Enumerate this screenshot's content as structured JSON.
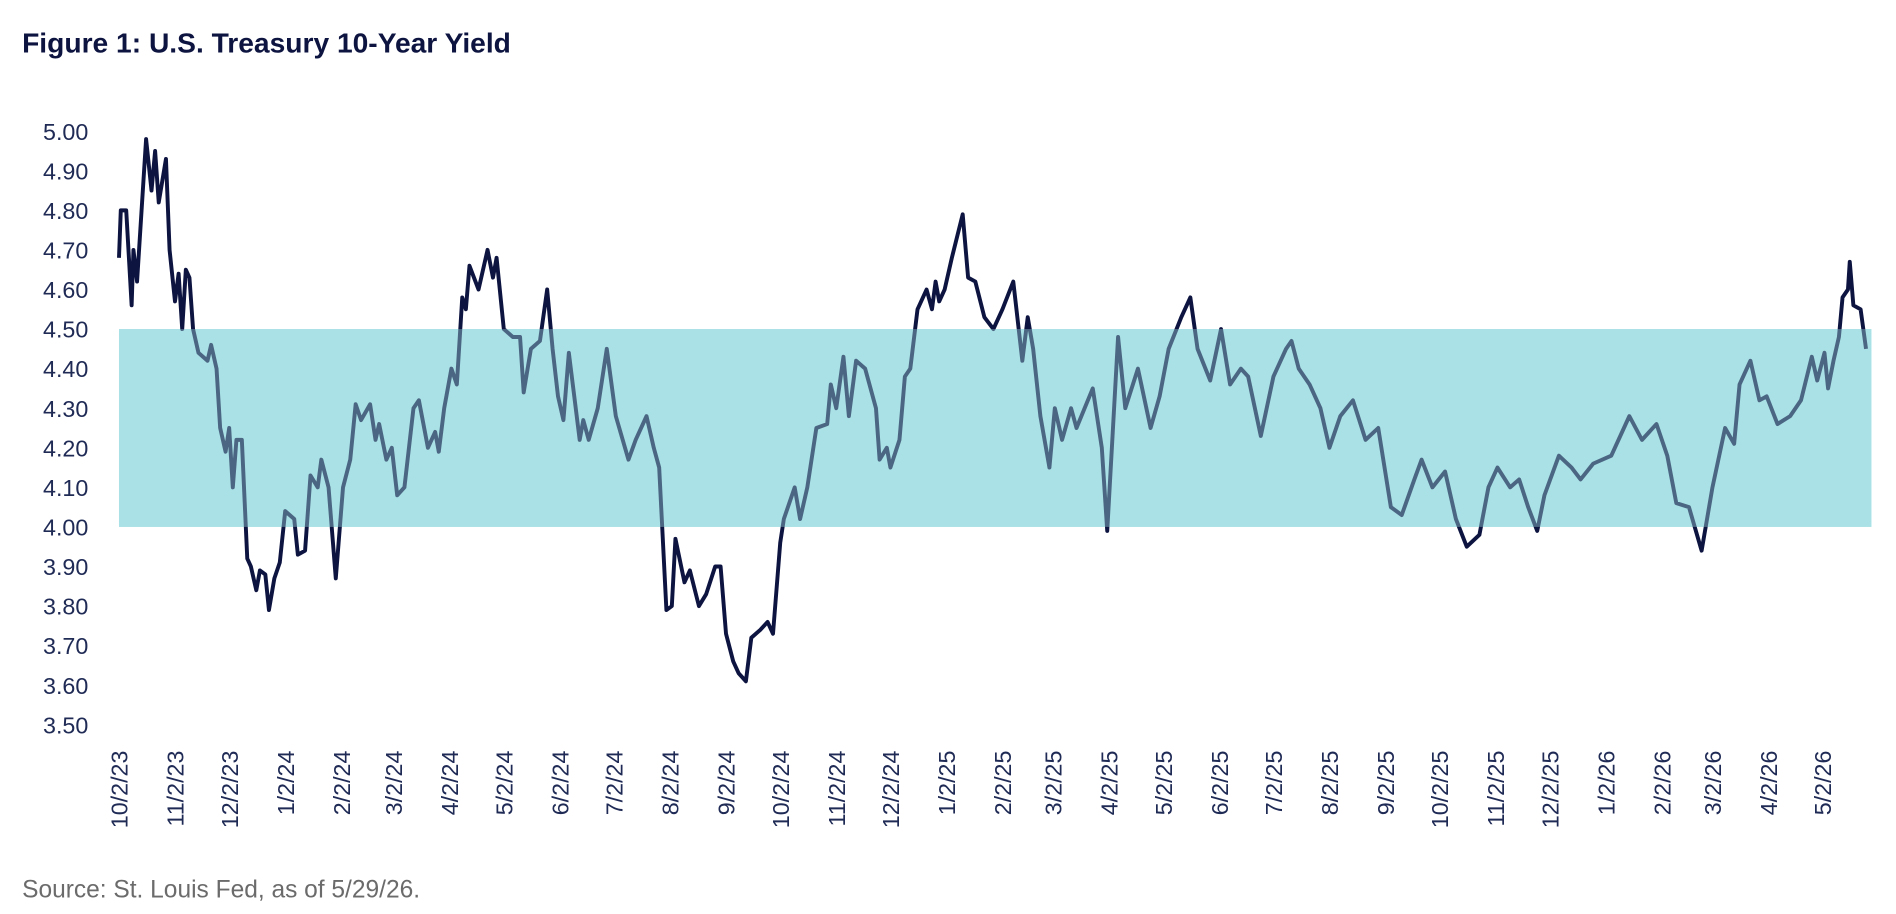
{
  "chart_data": {
    "type": "line",
    "title": "Figure 1: U.S. Treasury 10-Year Yield",
    "source": "Source: St. Louis Fed, as of 5/29/26.",
    "xlim": [
      "10/2/23",
      "5/29/26"
    ],
    "xticks": [
      "10/2/23",
      "11/2/23",
      "12/2/23",
      "1/2/24",
      "2/2/24",
      "3/2/24",
      "4/2/24",
      "5/2/24",
      "6/2/24",
      "7/2/24",
      "8/2/24",
      "9/2/24",
      "10/2/24",
      "11/2/24",
      "12/2/24",
      "1/2/25",
      "2/2/25",
      "3/2/25",
      "4/2/25",
      "5/2/25",
      "6/2/25",
      "7/2/25",
      "8/2/25",
      "9/2/25",
      "10/2/25",
      "11/2/25",
      "12/2/25",
      "1/2/26",
      "2/2/26",
      "3/2/26",
      "4/2/26",
      "5/2/26"
    ],
    "ylim": [
      3.5,
      5.0
    ],
    "yticks": [
      {
        "value": 3.5,
        "label": "3.50"
      },
      {
        "value": 3.6,
        "label": "3.60"
      },
      {
        "value": 3.7,
        "label": "3.70"
      },
      {
        "value": 3.8,
        "label": "3.80"
      },
      {
        "value": 3.9,
        "label": "3.90"
      },
      {
        "value": 4.0,
        "label": "4.00"
      },
      {
        "value": 4.1,
        "label": "4.10"
      },
      {
        "value": 4.2,
        "label": "4.20"
      },
      {
        "value": 4.3,
        "label": "4.30"
      },
      {
        "value": 4.4,
        "label": "4.40"
      },
      {
        "value": 4.5,
        "label": "4.50"
      },
      {
        "value": 4.6,
        "label": "4.60"
      },
      {
        "value": 4.7,
        "label": "4.70"
      },
      {
        "value": 4.8,
        "label": "4.80"
      },
      {
        "value": 4.9,
        "label": "4.90"
      },
      {
        "value": 5.0,
        "label": "5.00"
      }
    ],
    "grid": false,
    "shaded_range": [
      4.0,
      4.5
    ],
    "shaded_color": "#a9e2e7",
    "color": "#0d1440",
    "x": [
      "10/2/23",
      "10/3/23",
      "10/6/23",
      "10/9/23",
      "10/10/23",
      "10/12/23",
      "10/17/23",
      "10/20/23",
      "10/22/23",
      "10/24/23",
      "10/28/23",
      "10/30/23",
      "11/2/23",
      "11/4/23",
      "11/6/23",
      "11/8/23",
      "11/10/23",
      "11/12/23",
      "11/15/23",
      "11/20/23",
      "11/22/23",
      "11/25/23",
      "11/27/23",
      "11/30/23",
      "12/2/23",
      "12/4/23",
      "12/6/23",
      "12/9/23",
      "12/12/23",
      "12/14/23",
      "12/17/23",
      "12/19/23",
      "12/22/23",
      "12/24/23",
      "12/27/23",
      "12/30/23",
      "1/2/24",
      "1/7/24",
      "1/9/24",
      "1/13/24",
      "1/16/24",
      "1/20/24",
      "1/22/24",
      "1/26/24",
      "1/30/24",
      "2/3/24",
      "2/7/24",
      "2/10/24",
      "2/13/24",
      "2/18/24",
      "2/21/24",
      "2/23/24",
      "2/27/24",
      "3/1/24",
      "3/4/24",
      "3/8/24",
      "3/13/24",
      "3/16/24",
      "3/21/24",
      "3/25/24",
      "3/27/24",
      "3/30/24",
      "4/3/24",
      "4/6/24",
      "4/9/24",
      "4/11/24",
      "4/13/24",
      "4/18/24",
      "4/23/24",
      "4/26/24",
      "4/28/24",
      "5/2/24",
      "5/7/24",
      "5/11/24",
      "5/13/24",
      "5/17/24",
      "5/22/24",
      "5/26/24",
      "5/29/24",
      "6/1/24",
      "6/4/24",
      "6/7/24",
      "6/13/24",
      "6/15/24",
      "6/18/24",
      "6/23/24",
      "6/28/24",
      "7/3/24",
      "7/10/24",
      "7/14/24",
      "7/20/24",
      "7/24/24",
      "7/27/24",
      "7/31/24",
      "8/3/24",
      "8/5/24",
      "8/10/24",
      "8/13/24",
      "8/18/24",
      "8/22/24",
      "8/27/24",
      "8/30/24",
      "9/2/24",
      "9/6/24",
      "9/9/24",
      "9/13/24",
      "9/16/24",
      "9/21/24",
      "9/25/24",
      "9/28/24",
      "10/2/24",
      "10/4/24",
      "10/10/24",
      "10/13/24",
      "10/17/24",
      "10/22/24",
      "10/28/24",
      "10/30/24",
      "11/2/24",
      "11/6/24",
      "11/9/24",
      "11/13/24",
      "11/18/24",
      "11/24/24",
      "11/26/24",
      "11/30/24",
      "12/2/24",
      "12/7/24",
      "12/10/24",
      "12/13/24",
      "12/17/24",
      "12/22/24",
      "12/25/24",
      "12/27/24",
      "12/29/24",
      "1/1/25",
      "1/5/25",
      "1/11/25",
      "1/14/25",
      "1/18/25",
      "1/23/25",
      "1/28/25",
      "2/2/25",
      "2/8/25",
      "2/13/25",
      "2/16/25",
      "2/19/25",
      "2/23/25",
      "2/28/25",
      "3/3/25",
      "3/7/25",
      "3/12/25",
      "3/15/25",
      "3/24/25",
      "3/29/25",
      "4/1/25",
      "4/7/25",
      "4/11/25",
      "4/18/25",
      "4/25/25",
      "4/30/25",
      "5/5/25",
      "5/12/25",
      "5/17/25",
      "5/21/25",
      "5/28/25",
      "6/3/25",
      "6/8/25",
      "6/14/25",
      "6/18/25",
      "6/25/25",
      "7/2/25",
      "7/9/25",
      "7/12/25",
      "7/16/25",
      "7/22/25",
      "7/28/25",
      "8/2/25",
      "8/8/25",
      "8/15/25",
      "8/22/25",
      "8/29/25",
      "9/5/25",
      "9/11/25",
      "9/18/25",
      "9/22/25",
      "9/28/25",
      "10/5/25",
      "10/11/25",
      "10/17/25",
      "10/24/25",
      "10/29/25",
      "11/3/25",
      "11/10/25",
      "11/15/25",
      "11/20/25",
      "11/25/25",
      "11/29/25",
      "12/7/25",
      "12/14/25",
      "12/19/25",
      "12/26/25",
      "1/5/26",
      "1/15/26",
      "1/22/26",
      "1/30/26",
      "2/5/26",
      "2/10/26",
      "2/17/26",
      "2/24/26",
      "3/2/26",
      "3/9/26",
      "3/14/26",
      "3/17/26",
      "3/23/26",
      "3/28/26",
      "4/1/26",
      "4/7/26",
      "4/14/26",
      "4/20/26",
      "4/26/26",
      "4/29/26",
      "5/3/26",
      "5/5/26",
      "5/8/26",
      "5/11/26",
      "5/13/26",
      "5/16/26",
      "5/17/26",
      "5/19/26",
      "5/23/26",
      "5/26/26"
    ],
    "values": [
      4.68,
      4.8,
      4.8,
      4.56,
      4.7,
      4.62,
      4.98,
      4.85,
      4.95,
      4.82,
      4.93,
      4.7,
      4.57,
      4.64,
      4.5,
      4.65,
      4.63,
      4.5,
      4.44,
      4.42,
      4.46,
      4.4,
      4.25,
      4.19,
      4.25,
      4.1,
      4.22,
      4.22,
      3.92,
      3.9,
      3.84,
      3.89,
      3.88,
      3.79,
      3.87,
      3.91,
      4.04,
      4.02,
      3.93,
      3.94,
      4.13,
      4.1,
      4.17,
      4.1,
      3.87,
      4.1,
      4.17,
      4.31,
      4.27,
      4.31,
      4.22,
      4.26,
      4.17,
      4.2,
      4.08,
      4.1,
      4.3,
      4.32,
      4.2,
      4.24,
      4.19,
      4.3,
      4.4,
      4.36,
      4.58,
      4.55,
      4.66,
      4.6,
      4.7,
      4.63,
      4.68,
      4.5,
      4.48,
      4.48,
      4.34,
      4.45,
      4.47,
      4.6,
      4.45,
      4.33,
      4.27,
      4.44,
      4.22,
      4.27,
      4.22,
      4.3,
      4.45,
      4.28,
      4.17,
      4.22,
      4.28,
      4.2,
      4.15,
      3.79,
      3.8,
      3.97,
      3.86,
      3.89,
      3.8,
      3.83,
      3.9,
      3.9,
      3.73,
      3.66,
      3.63,
      3.61,
      3.72,
      3.74,
      3.76,
      3.73,
      3.96,
      4.02,
      4.1,
      4.02,
      4.1,
      4.25,
      4.26,
      4.36,
      4.3,
      4.43,
      4.28,
      4.42,
      4.4,
      4.3,
      4.17,
      4.2,
      4.15,
      4.22,
      4.38,
      4.4,
      4.55,
      4.6,
      4.55,
      4.62,
      4.57,
      4.6,
      4.68,
      4.79,
      4.63,
      4.62,
      4.53,
      4.5,
      4.55,
      4.62,
      4.42,
      4.53,
      4.45,
      4.28,
      4.15,
      4.3,
      4.22,
      4.3,
      4.25,
      4.35,
      4.2,
      3.99,
      4.48,
      4.3,
      4.4,
      4.25,
      4.33,
      4.45,
      4.53,
      4.58,
      4.45,
      4.37,
      4.5,
      4.36,
      4.4,
      4.38,
      4.23,
      4.38,
      4.45,
      4.47,
      4.4,
      4.36,
      4.3,
      4.2,
      4.28,
      4.32,
      4.22,
      4.25,
      4.05,
      4.03,
      4.12,
      4.17,
      4.1,
      4.14,
      4.02,
      3.95,
      3.98,
      4.1,
      4.15,
      4.1,
      4.12,
      4.05,
      3.99,
      4.08,
      4.18,
      4.15,
      4.12,
      4.16,
      4.18,
      4.28,
      4.22,
      4.26,
      4.18,
      4.06,
      4.05,
      3.94,
      4.1,
      4.25,
      4.21,
      4.36,
      4.42,
      4.32,
      4.33,
      4.26,
      4.28,
      4.32,
      4.43,
      4.37,
      4.44,
      4.35,
      4.42,
      4.48,
      4.58,
      4.6,
      4.67,
      4.56,
      4.55,
      4.45
    ]
  }
}
